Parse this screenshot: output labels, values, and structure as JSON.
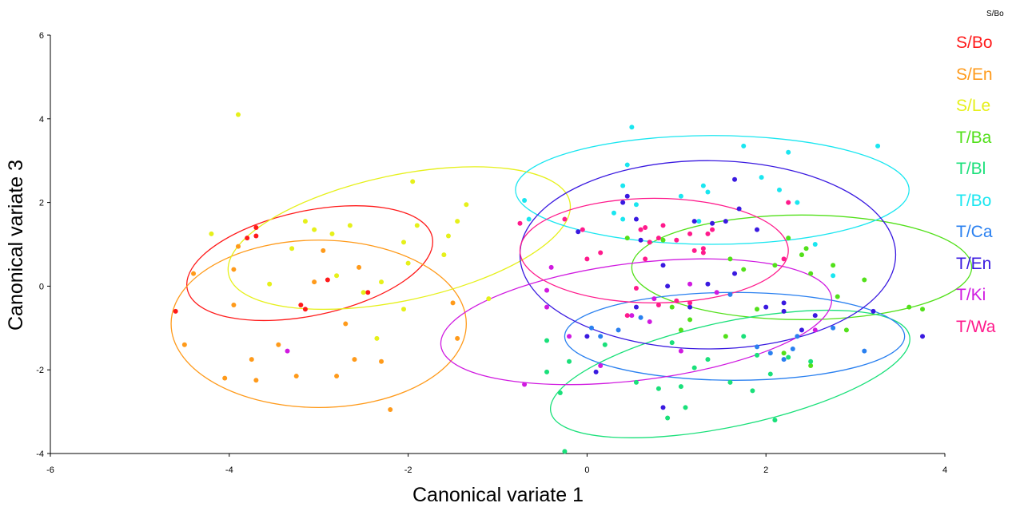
{
  "chart_data": {
    "type": "scatter",
    "xlabel": "Canonical variate 1",
    "ylabel": "Canonical variate 3",
    "xlim": [
      -6,
      4
    ],
    "ylim": [
      -4,
      6
    ],
    "xticks": [
      "-6",
      "-4",
      "-2",
      "0",
      "2",
      "4"
    ],
    "yticks": [
      "-4",
      "-2",
      "0",
      "2",
      "4",
      "6"
    ],
    "grid": false,
    "legend_position": "right",
    "legend_corner_label": "S/Bo",
    "series": [
      {
        "name": "S/Bo",
        "color": "#ff1a1a",
        "points": [
          [
            -4.6,
            -0.6
          ],
          [
            -3.8,
            1.15
          ],
          [
            -3.7,
            1.2
          ],
          [
            -3.7,
            1.4
          ],
          [
            -3.2,
            -0.45
          ],
          [
            -3.15,
            -0.55
          ],
          [
            -2.9,
            0.15
          ],
          [
            -2.45,
            -0.15
          ]
        ],
        "ellipse": {
          "cx": -3.1,
          "cy": 0.55,
          "rx": 1.4,
          "ry": 1.25,
          "angle": -12
        }
      },
      {
        "name": "S/En",
        "color": "#ff9a1a",
        "points": [
          [
            -4.5,
            -1.4
          ],
          [
            -4.4,
            0.3
          ],
          [
            -4.05,
            -2.2
          ],
          [
            -3.95,
            -0.45
          ],
          [
            -3.95,
            0.4
          ],
          [
            -3.9,
            0.95
          ],
          [
            -3.75,
            -1.75
          ],
          [
            -3.7,
            -2.25
          ],
          [
            -3.45,
            -1.4
          ],
          [
            -3.25,
            -2.15
          ],
          [
            -3.05,
            0.1
          ],
          [
            -2.95,
            0.85
          ],
          [
            -2.8,
            -2.15
          ],
          [
            -2.7,
            -0.9
          ],
          [
            -2.6,
            -1.75
          ],
          [
            -2.55,
            0.45
          ],
          [
            -2.3,
            -1.8
          ],
          [
            -2.2,
            -2.95
          ],
          [
            -1.5,
            -0.4
          ],
          [
            -1.45,
            -1.25
          ]
        ],
        "ellipse": {
          "cx": -3.0,
          "cy": -0.9,
          "rx": 1.65,
          "ry": 2.0,
          "angle": 0
        }
      },
      {
        "name": "S/Le",
        "color": "#e6f01a",
        "points": [
          [
            -3.9,
            4.1
          ],
          [
            -4.2,
            1.25
          ],
          [
            -3.55,
            0.05
          ],
          [
            -3.3,
            0.9
          ],
          [
            -3.15,
            1.55
          ],
          [
            -3.05,
            1.35
          ],
          [
            -2.85,
            1.25
          ],
          [
            -2.65,
            1.45
          ],
          [
            -2.5,
            -0.15
          ],
          [
            -2.35,
            -1.25
          ],
          [
            -2.3,
            0.1
          ],
          [
            -2.05,
            1.05
          ],
          [
            -2.0,
            0.55
          ],
          [
            -1.9,
            1.45
          ],
          [
            -1.95,
            2.5
          ],
          [
            -1.6,
            0.75
          ],
          [
            -1.55,
            1.2
          ],
          [
            -1.35,
            1.95
          ],
          [
            -1.45,
            1.55
          ],
          [
            -1.1,
            -0.3
          ],
          [
            -2.05,
            -0.55
          ],
          [
            -2.8,
            0.25
          ]
        ],
        "ellipse": {
          "cx": -2.1,
          "cy": 1.15,
          "rx": 1.95,
          "ry": 1.5,
          "angle": -12
        }
      },
      {
        "name": "T/Ba",
        "color": "#52e01a",
        "points": [
          [
            0.45,
            1.15
          ],
          [
            0.7,
            1.05
          ],
          [
            0.85,
            1.1
          ],
          [
            1.6,
            0.65
          ],
          [
            1.75,
            0.4
          ],
          [
            2.1,
            0.5
          ],
          [
            2.25,
            1.15
          ],
          [
            2.4,
            0.75
          ],
          [
            2.45,
            0.9
          ],
          [
            2.5,
            0.3
          ],
          [
            2.75,
            0.5
          ],
          [
            2.9,
            -1.05
          ],
          [
            3.1,
            0.15
          ],
          [
            3.6,
            -0.5
          ],
          [
            3.75,
            -0.55
          ],
          [
            2.2,
            -1.6
          ],
          [
            1.9,
            -0.55
          ],
          [
            1.55,
            -1.2
          ],
          [
            1.15,
            -0.8
          ],
          [
            0.95,
            -0.5
          ],
          [
            1.05,
            -1.05
          ],
          [
            2.5,
            -1.9
          ],
          [
            2.8,
            -0.25
          ]
        ],
        "ellipse": {
          "cx": 2.4,
          "cy": 0.45,
          "rx": 1.9,
          "ry": 1.25,
          "angle": 0
        }
      },
      {
        "name": "T/Bl",
        "color": "#1ae07a",
        "points": [
          [
            -0.45,
            -2.05
          ],
          [
            -0.3,
            -2.55
          ],
          [
            -0.2,
            -1.8
          ],
          [
            -0.25,
            -3.95
          ],
          [
            0.55,
            -2.3
          ],
          [
            0.8,
            -2.45
          ],
          [
            0.9,
            -3.15
          ],
          [
            1.05,
            -2.4
          ],
          [
            1.2,
            -1.95
          ],
          [
            1.35,
            -1.75
          ],
          [
            1.6,
            -2.3
          ],
          [
            1.75,
            -1.2
          ],
          [
            1.85,
            -2.5
          ],
          [
            1.9,
            -1.65
          ],
          [
            2.05,
            -2.1
          ],
          [
            2.1,
            -3.2
          ],
          [
            2.25,
            -1.7
          ],
          [
            2.5,
            -1.8
          ],
          [
            0.95,
            -1.35
          ],
          [
            1.1,
            -2.9
          ],
          [
            0.2,
            -1.4
          ],
          [
            -0.45,
            -1.3
          ]
        ],
        "ellipse": {
          "cx": 1.6,
          "cy": -2.1,
          "rx": 2.05,
          "ry": 1.25,
          "angle": -12
        }
      },
      {
        "name": "T/Bo",
        "color": "#1ae6f0",
        "points": [
          [
            0.5,
            3.8
          ],
          [
            0.45,
            2.9
          ],
          [
            0.4,
            2.4
          ],
          [
            0.3,
            1.75
          ],
          [
            0.4,
            1.6
          ],
          [
            -0.65,
            1.6
          ],
          [
            -0.7,
            2.05
          ],
          [
            1.3,
            2.4
          ],
          [
            1.35,
            2.25
          ],
          [
            1.25,
            1.55
          ],
          [
            1.75,
            3.35
          ],
          [
            1.95,
            2.6
          ],
          [
            2.15,
            2.3
          ],
          [
            2.25,
            3.2
          ],
          [
            2.35,
            2.0
          ],
          [
            2.55,
            1.0
          ],
          [
            2.75,
            0.25
          ],
          [
            3.25,
            3.35
          ],
          [
            0.55,
            1.95
          ],
          [
            1.05,
            2.15
          ]
        ],
        "ellipse": {
          "cx": 1.4,
          "cy": 2.3,
          "rx": 2.2,
          "ry": 1.3,
          "angle": 0
        }
      },
      {
        "name": "T/Ca",
        "color": "#2a80f0",
        "points": [
          [
            0.05,
            -1.0
          ],
          [
            0.15,
            -1.2
          ],
          [
            0.35,
            -1.05
          ],
          [
            0.6,
            -0.75
          ],
          [
            1.6,
            -0.2
          ],
          [
            1.9,
            -1.45
          ],
          [
            2.05,
            -1.6
          ],
          [
            2.2,
            -1.75
          ],
          [
            2.3,
            -1.5
          ],
          [
            2.75,
            -1.0
          ],
          [
            3.1,
            -1.55
          ],
          [
            2.35,
            -1.2
          ]
        ],
        "ellipse": {
          "cx": 1.65,
          "cy": -1.2,
          "rx": 1.9,
          "ry": 1.05,
          "angle": 0
        }
      },
      {
        "name": "T/En",
        "color": "#3a1ae0",
        "points": [
          [
            -0.1,
            1.3
          ],
          [
            0.4,
            2.0
          ],
          [
            0.45,
            2.15
          ],
          [
            0.55,
            1.6
          ],
          [
            0.6,
            1.1
          ],
          [
            0.85,
            0.5
          ],
          [
            0.9,
            0.0
          ],
          [
            1.15,
            -0.5
          ],
          [
            1.2,
            1.55
          ],
          [
            1.35,
            0.05
          ],
          [
            1.4,
            1.5
          ],
          [
            1.55,
            1.55
          ],
          [
            1.65,
            2.55
          ],
          [
            1.7,
            1.85
          ],
          [
            1.9,
            1.35
          ],
          [
            2.0,
            -0.5
          ],
          [
            2.2,
            -0.6
          ],
          [
            2.4,
            -1.05
          ],
          [
            2.55,
            -0.7
          ],
          [
            3.2,
            -0.6
          ],
          [
            3.75,
            -1.2
          ],
          [
            0.85,
            -2.9
          ],
          [
            0.1,
            -2.05
          ],
          [
            0.55,
            -0.5
          ],
          [
            0.0,
            -1.2
          ],
          [
            1.65,
            0.3
          ],
          [
            2.2,
            -0.4
          ]
        ],
        "ellipse": {
          "cx": 1.35,
          "cy": 0.75,
          "rx": 2.1,
          "ry": 2.25,
          "angle": 0
        }
      },
      {
        "name": "T/Ki",
        "color": "#d01ae0",
        "points": [
          [
            -3.35,
            -1.55
          ],
          [
            -0.7,
            -2.35
          ],
          [
            -0.45,
            -0.5
          ],
          [
            -0.4,
            0.45
          ],
          [
            -0.2,
            -1.2
          ],
          [
            -0.45,
            -0.1
          ],
          [
            0.15,
            -1.9
          ],
          [
            0.5,
            -0.7
          ],
          [
            0.75,
            -0.3
          ],
          [
            1.05,
            -1.55
          ],
          [
            1.15,
            0.05
          ],
          [
            1.45,
            -0.15
          ],
          [
            2.55,
            -1.05
          ],
          [
            0.7,
            -0.85
          ]
        ],
        "ellipse": {
          "cx": 0.55,
          "cy": -0.85,
          "rx": 2.2,
          "ry": 1.4,
          "angle": -7
        }
      },
      {
        "name": "T/Wa",
        "color": "#ff1a8c",
        "points": [
          [
            -0.75,
            1.5
          ],
          [
            -0.25,
            1.6
          ],
          [
            -0.05,
            1.35
          ],
          [
            0.0,
            0.65
          ],
          [
            0.15,
            0.8
          ],
          [
            0.6,
            1.35
          ],
          [
            0.65,
            1.4
          ],
          [
            0.7,
            1.05
          ],
          [
            0.8,
            1.15
          ],
          [
            1.0,
            1.1
          ],
          [
            1.15,
            1.25
          ],
          [
            1.2,
            0.85
          ],
          [
            1.3,
            0.9
          ],
          [
            1.35,
            1.25
          ],
          [
            1.4,
            1.35
          ],
          [
            1.3,
            0.8
          ],
          [
            1.15,
            -0.4
          ],
          [
            1.0,
            -0.35
          ],
          [
            0.8,
            -0.45
          ],
          [
            0.55,
            -0.05
          ],
          [
            0.45,
            -0.7
          ],
          [
            2.2,
            0.65
          ],
          [
            2.25,
            2.0
          ],
          [
            0.85,
            1.45
          ],
          [
            0.65,
            0.65
          ]
        ],
        "ellipse": {
          "cx": 0.75,
          "cy": 0.85,
          "rx": 1.5,
          "ry": 1.25,
          "angle": 0
        }
      }
    ]
  }
}
